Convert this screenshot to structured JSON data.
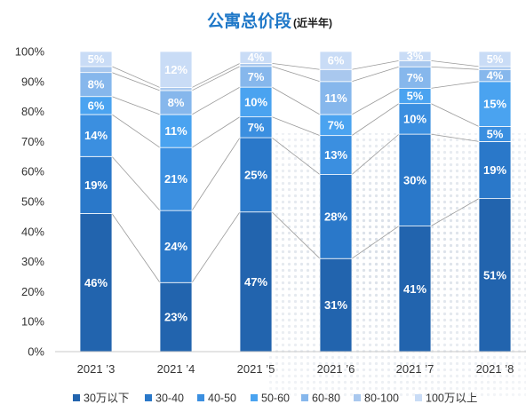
{
  "chart_data": {
    "type": "bar",
    "stacked": true,
    "normalized": true,
    "title": "公寓总价段",
    "subtitle": "(近半年)",
    "categories": [
      "2021 ’3",
      "2021 ’4",
      "2021 ’5",
      "2021 ’6",
      "2021 ’7",
      "2021 ’8"
    ],
    "series": [
      {
        "name": "30万以下",
        "color": "#2264ae",
        "values": [
          46,
          23,
          47,
          31,
          41,
          51
        ]
      },
      {
        "name": "30-40",
        "color": "#2a78c9",
        "values": [
          19,
          24,
          25,
          28,
          30,
          19
        ]
      },
      {
        "name": "40-50",
        "color": "#3b8fe0",
        "values": [
          14,
          21,
          7,
          13,
          10,
          5
        ]
      },
      {
        "name": "50-60",
        "color": "#4aa3f0",
        "values": [
          6,
          11,
          10,
          7,
          5,
          15
        ]
      },
      {
        "name": "60-80",
        "color": "#86b7ec",
        "values": [
          8,
          8,
          7,
          11,
          7,
          4
        ]
      },
      {
        "name": "80-100",
        "color": "#a9c8ee",
        "values": [
          2,
          1,
          1,
          4,
          2,
          1
        ]
      },
      {
        "name": "100万以上",
        "color": "#c9dcf6",
        "values": [
          5,
          12,
          4,
          6,
          3,
          5
        ]
      }
    ],
    "data_labels": {
      "30万以下": [
        "46%",
        "23%",
        "47%",
        "31%",
        "41%",
        "51%"
      ],
      "30-40": [
        "19%",
        "24%",
        "25%",
        "28%",
        "30%",
        "19%"
      ],
      "40-50": [
        "14%",
        "21%",
        "7%",
        "13%",
        "10%",
        "5%"
      ],
      "50-60": [
        "6%",
        "11%",
        "10%",
        "7%",
        "5%",
        "15%"
      ],
      "60-80": [
        "8%",
        "8%",
        "7%",
        "11%",
        "7%",
        "4%"
      ],
      "100万以上": [
        "5%",
        "12%",
        "4%",
        "6%",
        "3%",
        "5%"
      ]
    },
    "y_ticks": [
      "0%",
      "10%",
      "20%",
      "30%",
      "40%",
      "50%",
      "60%",
      "70%",
      "80%",
      "90%",
      "100%"
    ],
    "ylim": [
      0,
      100
    ],
    "connector_lines": true,
    "legend_position": "bottom",
    "grid": false
  }
}
